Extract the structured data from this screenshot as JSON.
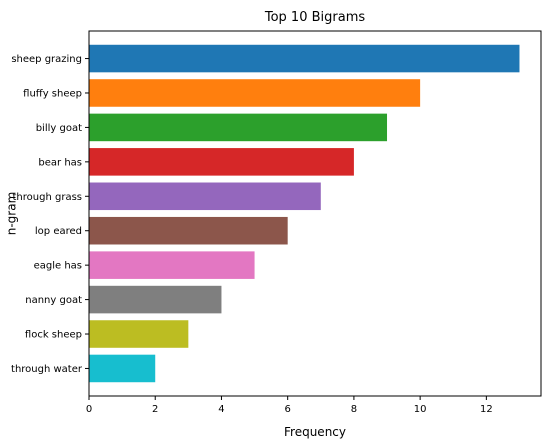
{
  "chart_data": {
    "type": "bar",
    "orientation": "horizontal",
    "title": "Top 10 Bigrams",
    "xlabel": "Frequency",
    "ylabel": "n-gram",
    "categories": [
      "sheep grazing",
      "fluffy sheep",
      "billy goat",
      "bear has",
      "through grass",
      "lop eared",
      "eagle has",
      "nanny goat",
      "flock sheep",
      "through water"
    ],
    "values": [
      13,
      10,
      9,
      8,
      7,
      6,
      5,
      4,
      3,
      2
    ],
    "colors": [
      "#1f77b4",
      "#ff7f0e",
      "#2ca02c",
      "#d62728",
      "#9467bd",
      "#8c564b",
      "#e377c2",
      "#7f7f7f",
      "#bcbd22",
      "#17becf"
    ],
    "xlim": [
      0,
      13.65
    ],
    "xticks": [
      0,
      2,
      4,
      6,
      8,
      10,
      12
    ],
    "grid": false,
    "legend": false
  }
}
